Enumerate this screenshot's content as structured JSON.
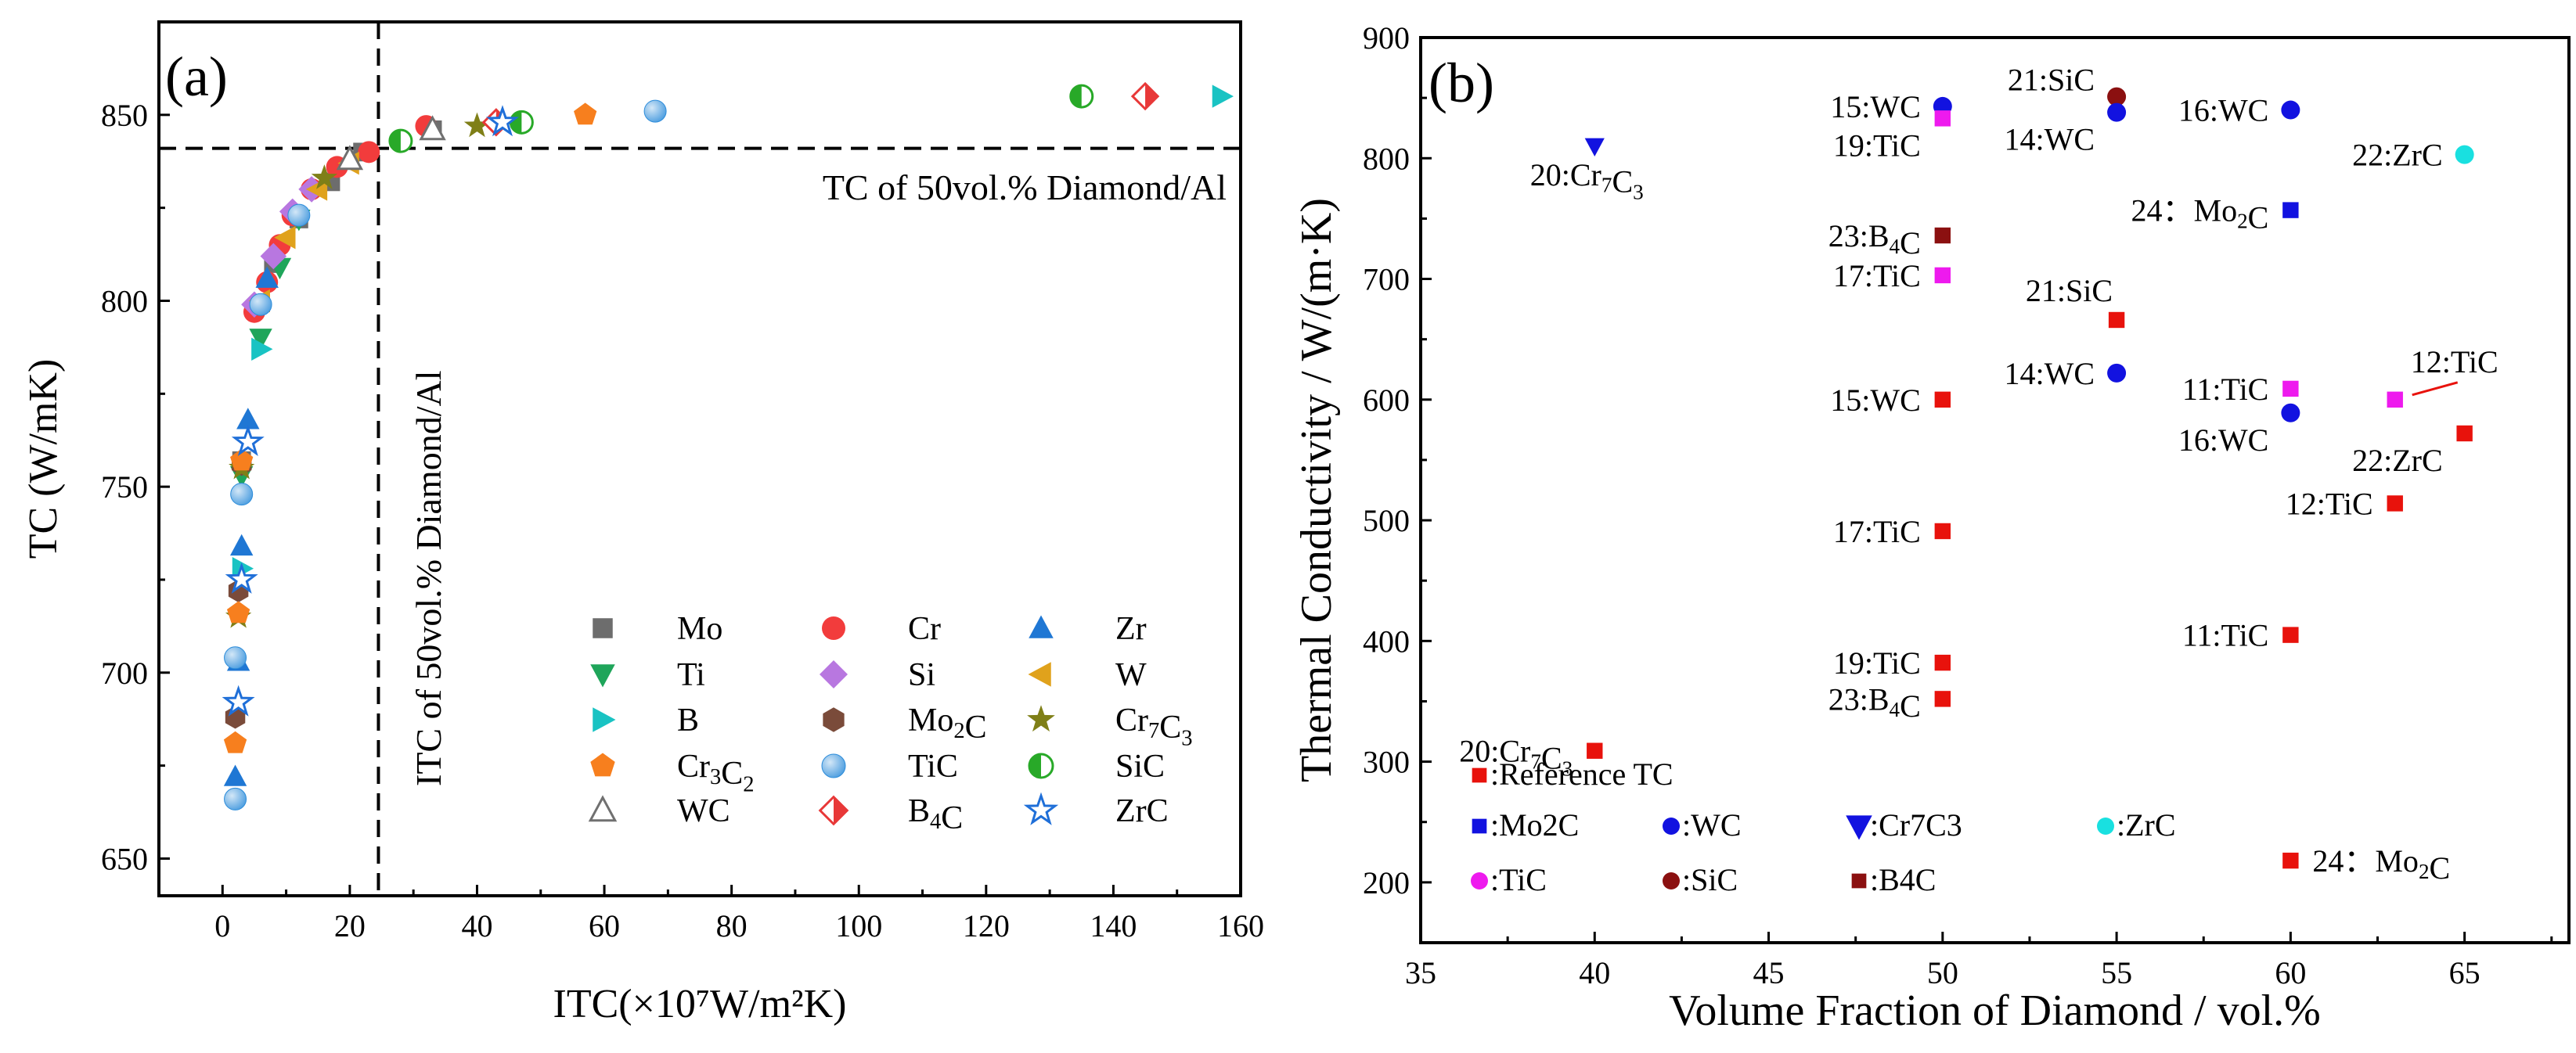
{
  "chart_data": [
    {
      "type": "scatter",
      "panel_label": "(a)",
      "xlabel": "ITC(×10⁷W/m²K)",
      "ylabel": "TC  (W/mK)",
      "xlim": [
        -10,
        160
      ],
      "ylim": [
        640,
        875
      ],
      "xticks": [
        0,
        20,
        40,
        60,
        80,
        100,
        120,
        140,
        160
      ],
      "yticks": [
        650,
        700,
        750,
        800,
        850
      ],
      "hline": {
        "y": 841,
        "label": "TC of 50vol.% Diamond/Al"
      },
      "vline": {
        "x": 24.5,
        "label": "ITC of 50vol.% Diamond/Al"
      },
      "series": [
        {
          "name": "Mo",
          "legend_label": "Mo",
          "color": "#6d6d6d",
          "marker": "square",
          "points": [
            [
              3,
              757
            ],
            [
              8,
              810
            ],
            [
              12,
              822
            ],
            [
              17,
              832
            ],
            [
              22,
              840
            ],
            [
              33,
              846
            ]
          ]
        },
        {
          "name": "Cr",
          "legend_label": "Cr",
          "color": "#f23c3c",
          "marker": "circle",
          "points": [
            [
              5,
              797
            ],
            [
              7,
              805
            ],
            [
              9,
              815
            ],
            [
              11,
              823
            ],
            [
              14,
              830
            ],
            [
              18,
              836
            ],
            [
              23,
              840
            ],
            [
              32,
              847
            ]
          ]
        },
        {
          "name": "Zr",
          "legend_label": "Zr",
          "color": "#1f77d4",
          "marker": "triangle-up",
          "points": [
            [
              2,
              672
            ],
            [
              2.5,
              703
            ],
            [
              3,
              734
            ],
            [
              4,
              768
            ],
            [
              7,
              806
            ]
          ]
        },
        {
          "name": "Ti",
          "legend_label": "Ti",
          "color": "#1fa55a",
          "marker": "triangle-down",
          "points": [
            [
              3,
              753
            ],
            [
              6,
              790
            ],
            [
              9,
              809
            ],
            [
              12,
              822
            ]
          ]
        },
        {
          "name": "Si",
          "legend_label": "Si",
          "color": "#b877e0",
          "marker": "diamond",
          "points": [
            [
              5,
              799
            ],
            [
              8,
              812
            ],
            [
              11,
              824
            ],
            [
              14,
              830
            ]
          ]
        },
        {
          "name": "W",
          "legend_label": "W",
          "color": "#e0a21c",
          "marker": "triangle-left",
          "points": [
            [
              6,
              800
            ],
            [
              10,
              817
            ],
            [
              15,
              830
            ],
            [
              20,
              837
            ]
          ]
        },
        {
          "name": "B",
          "legend_label": "B",
          "color": "#19c3c3",
          "marker": "triangle-right",
          "points": [
            [
              3,
              728
            ],
            [
              6,
              787
            ],
            [
              157,
              855
            ]
          ]
        },
        {
          "name": "Mo2C",
          "legend_label": "Mo₂C",
          "color": "#7a4b3a",
          "marker": "hexagon",
          "points": [
            [
              2,
              688
            ],
            [
              2.5,
              722
            ],
            [
              3,
              756
            ]
          ]
        },
        {
          "name": "Cr7C3",
          "legend_label": "Cr₇C₃",
          "color": "#7f7f17",
          "marker": "star",
          "points": [
            [
              2.5,
              715
            ],
            [
              3,
              755
            ],
            [
              16,
              833
            ],
            [
              40,
              847
            ]
          ]
        },
        {
          "name": "Cr3C2",
          "legend_label": "Cr₃C₂",
          "color": "#f77f1e",
          "marker": "pentagon",
          "points": [
            [
              2,
              681
            ],
            [
              2.5,
              716
            ],
            [
              3,
              757
            ],
            [
              57,
              850
            ]
          ]
        },
        {
          "name": "TiC",
          "legend_label": "TiC",
          "color": "#4f9fe0",
          "marker": "sphere",
          "points": [
            [
              2,
              666
            ],
            [
              2,
              704
            ],
            [
              3,
              748
            ],
            [
              6,
              799
            ],
            [
              12,
              823
            ],
            [
              68,
              851
            ]
          ]
        },
        {
          "name": "SiC",
          "legend_label": "SiC",
          "color": "#28a928",
          "marker": "half-circle",
          "points": [
            [
              28,
              843
            ],
            [
              47,
              848
            ],
            [
              135,
              855
            ]
          ]
        },
        {
          "name": "WC",
          "legend_label": "WC",
          "color": "#707070",
          "marker": "open-triangle",
          "points": [
            [
              20,
              838
            ],
            [
              33,
              846
            ]
          ]
        },
        {
          "name": "B4C",
          "legend_label": "B₄C",
          "color": "#e83838",
          "marker": "half-diamond",
          "points": [
            [
              43,
              848
            ],
            [
              145,
              855
            ]
          ]
        },
        {
          "name": "ZrC",
          "legend_label": "ZrC",
          "color": "#1f6fd8",
          "marker": "open-star",
          "points": [
            [
              2.5,
              692
            ],
            [
              3,
              725
            ],
            [
              4,
              762
            ],
            [
              44,
              848
            ]
          ]
        }
      ]
    },
    {
      "type": "scatter",
      "panel_label": "(b)",
      "xlabel": "Volume Fraction of Diamond / vol.%",
      "ylabel": "Thermal Conductivity / W/(m·K)",
      "xlim": [
        35,
        68
      ],
      "ylim": [
        150,
        900
      ],
      "xticks": [
        35,
        40,
        45,
        50,
        55,
        60,
        65
      ],
      "yticks": [
        200,
        300,
        400,
        500,
        600,
        700,
        800,
        900
      ],
      "points": [
        {
          "x": 40,
          "y": 309,
          "color": "#e8120c",
          "marker": "square",
          "label": "20:Cr₇C₃",
          "label_side": "left"
        },
        {
          "x": 50,
          "y": 600,
          "color": "#e8120c",
          "marker": "square",
          "label": "15:WC",
          "label_side": "left"
        },
        {
          "x": 50,
          "y": 491,
          "color": "#e8120c",
          "marker": "square",
          "label": "17:TiC",
          "label_side": "left"
        },
        {
          "x": 50,
          "y": 382,
          "color": "#e8120c",
          "marker": "square",
          "label": "19:TiC",
          "label_side": "left"
        },
        {
          "x": 50,
          "y": 352,
          "color": "#e8120c",
          "marker": "square",
          "label": "23:B₄C",
          "label_side": "left"
        },
        {
          "x": 55,
          "y": 666,
          "color": "#e8120c",
          "marker": "square",
          "label": "21:SiC",
          "label_side": "top"
        },
        {
          "x": 60,
          "y": 405,
          "color": "#e8120c",
          "marker": "square",
          "label": "11:TiC",
          "label_side": "left"
        },
        {
          "x": 60,
          "y": 218,
          "color": "#e8120c",
          "marker": "square",
          "label": "24：Mo₂C",
          "label_side": "right"
        },
        {
          "x": 63,
          "y": 514,
          "color": "#e8120c",
          "marker": "square",
          "label": "12:TiC",
          "label_side": "left"
        },
        {
          "x": 65,
          "y": 572,
          "color": "#e8120c",
          "marker": "square",
          "label": "22:ZrC",
          "label_side": "below-left"
        },
        {
          "x": 40,
          "y": 810,
          "color": "#1212e0",
          "marker": "triangle-down",
          "label": "20:Cr₇C₃",
          "label_side": "below"
        },
        {
          "x": 50,
          "y": 843,
          "color": "#1212e0",
          "marker": "circle",
          "label": "15:WC",
          "label_side": "left"
        },
        {
          "x": 50,
          "y": 833,
          "color": "#ee1aee",
          "marker": "square",
          "label": "19:TiC",
          "label_side": "below-left"
        },
        {
          "x": 50,
          "y": 736,
          "color": "#8b1010",
          "marker": "square",
          "label": "23:B₄C",
          "label_side": "left"
        },
        {
          "x": 50,
          "y": 703,
          "color": "#ee1aee",
          "marker": "square",
          "label": "17:TiC",
          "label_side": "left"
        },
        {
          "x": 55,
          "y": 851,
          "color": "#8b1010",
          "marker": "circle",
          "label": "21:SiC",
          "label_side": "top-left"
        },
        {
          "x": 55,
          "y": 838,
          "color": "#1212e0",
          "marker": "circle",
          "label": "14:WC",
          "label_side": "below-left"
        },
        {
          "x": 55,
          "y": 622,
          "color": "#1212e0",
          "marker": "circle",
          "label": "14:WC",
          "label_side": "left"
        },
        {
          "x": 60,
          "y": 840,
          "color": "#1212e0",
          "marker": "circle",
          "label": "16:WC",
          "label_side": "left"
        },
        {
          "x": 60,
          "y": 757,
          "color": "#1212e0",
          "marker": "square",
          "label": "24：Mo₂C",
          "label_side": "left"
        },
        {
          "x": 60,
          "y": 609,
          "color": "#ee1aee",
          "marker": "square",
          "label": "11:TiC",
          "label_side": "left"
        },
        {
          "x": 60,
          "y": 589,
          "color": "#1212e0",
          "marker": "circle",
          "label": "16:WC",
          "label_side": "below-left"
        },
        {
          "x": 63,
          "y": 600,
          "color": "#ee1aee",
          "marker": "square",
          "label": "12:TiC",
          "label_side": "top-right"
        },
        {
          "x": 65,
          "y": 803,
          "color": "#19e0e0",
          "marker": "circle",
          "label": "22:ZrC",
          "label_side": "left"
        }
      ],
      "legend": [
        {
          "label": ":Reference TC",
          "color": "#e8120c",
          "marker": "square"
        },
        {
          "label": ":Mo2C",
          "color": "#1212e0",
          "marker": "square"
        },
        {
          "label": ":WC",
          "color": "#1212e0",
          "marker": "circle"
        },
        {
          "label": ":Cr7C3",
          "color": "#1212e0",
          "marker": "triangle-down"
        },
        {
          "label": ":ZrC",
          "color": "#19e0e0",
          "marker": "circle"
        },
        {
          "label": ":TiC",
          "color": "#ee1aee",
          "marker": "circle"
        },
        {
          "label": ":SiC",
          "color": "#8b1010",
          "marker": "circle"
        },
        {
          "label": ":B4C",
          "color": "#8b1010",
          "marker": "square"
        }
      ]
    }
  ]
}
